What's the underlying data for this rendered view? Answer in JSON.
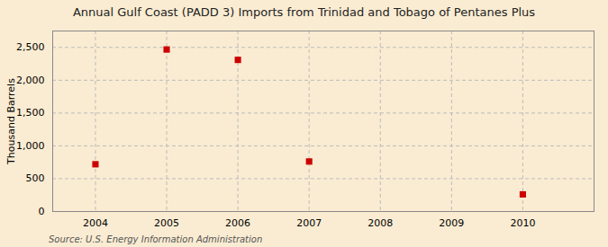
{
  "chart_data": {
    "type": "scatter",
    "title": "Annual Gulf Coast (PADD 3) Imports from Trinidad and Tobago of Pentanes Plus",
    "ylabel": "Thousand Barrels",
    "source": "Source: U.S. Energy Information Administration",
    "x": [
      2004,
      2005,
      2006,
      2007,
      2010
    ],
    "values": [
      720,
      2468,
      2310,
      762,
      261
    ],
    "xlim": [
      2003.4,
      2011.0
    ],
    "ylim": [
      0,
      2750
    ],
    "xticks": [
      2004,
      2005,
      2006,
      2007,
      2008,
      2009,
      2010
    ],
    "yticks": [
      0,
      500,
      {
        "value": 1000,
        "label": "1,000"
      },
      {
        "value": 1500,
        "label": "1,500"
      },
      {
        "value": 2000,
        "label": "2,000"
      },
      {
        "value": 2500,
        "label": "2,500"
      }
    ],
    "color": "#cc0000",
    "marker": "square",
    "grid": true
  }
}
